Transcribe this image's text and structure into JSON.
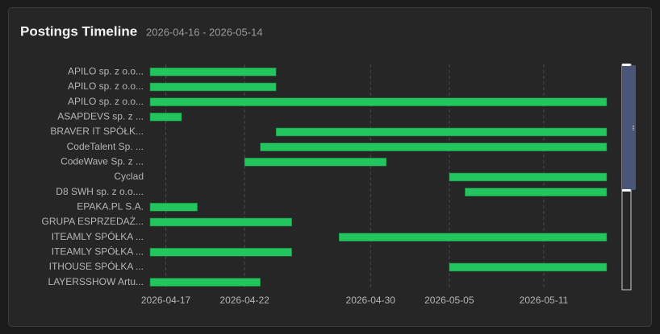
{
  "chart_data": {
    "type": "gantt",
    "title": "Postings Timeline",
    "subtitle": "2026-04-16 - 2026-05-14",
    "color": "#22c55e",
    "xlim": [
      "2026-04-16",
      "2026-05-15"
    ],
    "xticks": [
      "2026-04-17",
      "2026-04-22",
      "2026-04-30",
      "2026-05-05",
      "2026-05-11"
    ],
    "grid": true,
    "tasks": [
      {
        "label": "APILO sp. z o.o...",
        "start": "2026-04-16",
        "end": "2026-04-24"
      },
      {
        "label": "APILO sp. z o.o...",
        "start": "2026-04-16",
        "end": "2026-04-24"
      },
      {
        "label": "APILO sp. z o.o...",
        "start": "2026-04-16",
        "end": "2026-05-15"
      },
      {
        "label": "ASAPDEVS sp. z ...",
        "start": "2026-04-16",
        "end": "2026-04-18"
      },
      {
        "label": "BRAVER IT SPÓŁK...",
        "start": "2026-04-24",
        "end": "2026-05-15"
      },
      {
        "label": "CodeTalent Sp. ...",
        "start": "2026-04-23",
        "end": "2026-05-15"
      },
      {
        "label": "CodeWave Sp. z ...",
        "start": "2026-04-22",
        "end": "2026-05-01"
      },
      {
        "label": "Cyclad",
        "start": "2026-05-05",
        "end": "2026-05-15"
      },
      {
        "label": "D8 SWH sp. z o.o....",
        "start": "2026-05-06",
        "end": "2026-05-15"
      },
      {
        "label": "EPAKA.PL S.A.",
        "start": "2026-04-16",
        "end": "2026-04-19"
      },
      {
        "label": "GRUPA ESPRZEDAŻ...",
        "start": "2026-04-16",
        "end": "2026-04-25"
      },
      {
        "label": "ITEAMLY SPÓŁKA ...",
        "start": "2026-04-28",
        "end": "2026-05-15"
      },
      {
        "label": "ITEAMLY SPÓŁKA ...",
        "start": "2026-04-16",
        "end": "2026-04-25"
      },
      {
        "label": "ITHOUSE SPÓŁKA ...",
        "start": "2026-05-05",
        "end": "2026-05-15"
      },
      {
        "label": "LAYERSSHOW Artu...",
        "start": "2026-04-16",
        "end": "2026-04-23"
      }
    ]
  }
}
